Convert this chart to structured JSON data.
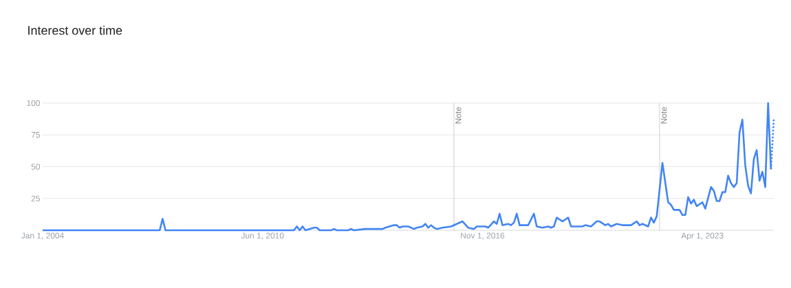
{
  "chart_data": {
    "type": "line",
    "title": "Interest over time",
    "x": [
      "2004-01",
      "2007-06",
      "2007-07",
      "2007-08",
      "2011-05",
      "2011-06",
      "2011-07",
      "2011-08",
      "2011-09",
      "2011-12",
      "2012-01",
      "2012-02",
      "2012-06",
      "2012-07",
      "2012-08",
      "2012-12",
      "2013-01",
      "2013-02",
      "2013-06",
      "2013-12",
      "2014-01",
      "2014-04",
      "2014-05",
      "2014-06",
      "2014-07",
      "2014-09",
      "2014-11",
      "2014-12",
      "2015-02",
      "2015-03",
      "2015-04",
      "2015-05",
      "2015-06",
      "2015-07",
      "2015-09",
      "2015-12",
      "2016-04",
      "2016-06",
      "2016-08",
      "2016-09",
      "2016-12",
      "2017-01",
      "2017-03",
      "2017-04",
      "2017-05",
      "2017-06",
      "2017-08",
      "2017-09",
      "2017-10",
      "2017-11",
      "2017-12",
      "2018-03",
      "2018-05",
      "2018-06",
      "2018-08",
      "2018-10",
      "2018-11",
      "2018-12",
      "2019-01",
      "2019-03",
      "2019-05",
      "2019-06",
      "2019-10",
      "2019-11",
      "2020-01",
      "2020-03",
      "2020-04",
      "2020-06",
      "2020-07",
      "2020-08",
      "2020-10",
      "2020-12",
      "2021-03",
      "2021-05",
      "2021-06",
      "2021-07",
      "2021-09",
      "2021-10",
      "2021-11",
      "2021-12",
      "2022-02",
      "2022-04",
      "2022-05",
      "2022-06",
      "2022-08",
      "2022-09",
      "2022-10",
      "2022-11",
      "2022-12",
      "2023-01",
      "2023-02",
      "2023-04",
      "2023-05",
      "2023-07",
      "2023-08",
      "2023-09",
      "2023-10",
      "2023-11",
      "2023-12",
      "2024-01",
      "2024-02",
      "2024-03",
      "2024-04",
      "2024-05",
      "2024-06",
      "2024-07",
      "2024-08",
      "2024-09",
      "2024-10",
      "2024-11",
      "2024-12",
      "2025-01",
      "2025-02",
      "2025-03",
      "2025-04"
    ],
    "series": [
      {
        "color": "#4285f4",
        "line_style": "solid",
        "values": [
          0,
          0,
          9,
          0,
          0,
          3,
          0,
          3,
          0,
          2,
          2,
          0,
          0,
          1,
          0,
          0,
          1,
          0,
          1,
          1,
          2,
          4,
          4,
          2,
          3,
          3,
          1,
          2,
          3,
          5,
          2,
          4,
          2,
          1,
          2,
          3,
          7,
          2,
          1,
          3,
          3,
          2,
          7,
          5,
          13,
          4,
          5,
          4,
          6,
          13,
          4,
          4,
          13,
          3,
          2,
          3,
          2,
          3,
          10,
          7,
          10,
          3,
          3,
          4,
          3,
          7,
          7,
          4,
          5,
          3,
          5,
          4,
          4,
          7,
          4,
          5,
          3,
          10,
          6,
          11,
          53,
          22,
          20,
          16,
          16,
          12,
          12,
          26,
          21,
          24,
          19,
          22,
          17,
          34,
          31,
          23,
          23,
          30,
          30,
          43,
          37,
          34,
          37,
          77,
          87,
          51,
          35,
          29,
          56,
          63,
          39,
          46,
          34,
          100,
          48
        ]
      },
      {
        "color": "#4285f4",
        "line_style": "dotted",
        "x": [
          "2025-04",
          "2025-05"
        ],
        "values": [
          48,
          88
        ]
      }
    ],
    "xlim": [
      "2004-01",
      "2025-05"
    ],
    "xticks": [
      {
        "value": "2004-01",
        "label": "Jan 1, 2004"
      },
      {
        "value": "2010-06",
        "label": "Jun 1, 2010"
      },
      {
        "value": "2016-11",
        "label": "Nov 1, 2016"
      },
      {
        "value": "2023-04",
        "label": "Apr 1, 2023"
      }
    ],
    "ylim": [
      0,
      100
    ],
    "yticks": [
      25,
      50,
      75,
      100
    ],
    "ref_lines": [
      {
        "axis": "x",
        "value": "2016-01",
        "label": "Note"
      },
      {
        "axis": "x",
        "value": "2022-01",
        "label": "Note"
      }
    ],
    "grid": "y",
    "marker": "none"
  }
}
